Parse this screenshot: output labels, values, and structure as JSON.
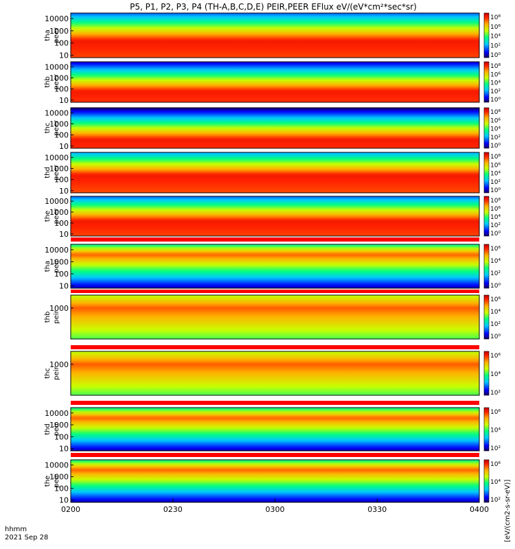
{
  "chart_data": {
    "type": "heatmap",
    "title": "P5, P1, P2, P3, P4 (TH-A,B,C,D,E) PEIR,PEER EFlux eV/(eV*cm²*sec*sr)",
    "x_label_left": "hhmm",
    "date_label": "2021 Sep 28",
    "x_ticks": [
      "0200",
      "0230",
      "0300",
      "0330",
      "0400"
    ],
    "x_range": [
      "02:00",
      "04:00"
    ],
    "colorbar_label": "[eV/(cm2-s-sr-eV)]",
    "panels": [
      {
        "label1": "tha",
        "label2": "peer",
        "yticks": [
          "10000",
          "1000",
          "100",
          "10"
        ],
        "cbar_ticks": [
          "10⁸",
          "10⁶",
          "10⁴",
          "10²",
          "10⁰"
        ],
        "y_log_range": [
          0.8,
          4.45
        ],
        "band": "electron",
        "core_log": 2.2
      },
      {
        "label1": "thb",
        "label2": "peer",
        "yticks": [
          "10000",
          "1000",
          "100",
          "10"
        ],
        "cbar_ticks": [
          "10⁸",
          "10⁶",
          "10⁴",
          "10²",
          "10⁰"
        ],
        "y_log_range": [
          0.8,
          4.45
        ],
        "band": "electron",
        "core_log": 1.8
      },
      {
        "label1": "thc",
        "label2": "peer",
        "yticks": [
          "10000",
          "1000",
          "100",
          "10"
        ],
        "cbar_ticks": [
          "10⁸",
          "10⁶",
          "10⁴",
          "10²",
          "10⁰"
        ],
        "y_log_range": [
          0.8,
          4.45
        ],
        "band": "electron",
        "core_log": 1.6
      },
      {
        "label1": "thd",
        "label2": "peer",
        "yticks": [
          "10000",
          "1000",
          "100",
          "10"
        ],
        "cbar_ticks": [
          "10⁸",
          "10⁶",
          "10⁴",
          "10²",
          "10⁰"
        ],
        "y_log_range": [
          0.8,
          4.45
        ],
        "band": "electron",
        "core_log": 2.4
      },
      {
        "label1": "the",
        "label2": "peer",
        "yticks": [
          "10000",
          "1000",
          "100",
          "10"
        ],
        "cbar_ticks": [
          "10⁸",
          "10⁶",
          "10⁴",
          "10²",
          "10⁰"
        ],
        "y_log_range": [
          0.8,
          4.45
        ],
        "band": "electron",
        "core_log": 2.2
      },
      {
        "label1": "tha",
        "label2": "peir",
        "yticks": [
          "10000",
          "1000",
          "100",
          "10"
        ],
        "cbar_ticks": [
          "10⁶",
          "10⁴",
          "10²",
          "10⁰"
        ],
        "y_log_range": [
          0.8,
          4.45
        ],
        "band": "ion",
        "core_log": 3.6
      },
      {
        "label1": "thb",
        "label2": "peir",
        "yticks": [
          "1000"
        ],
        "cbar_ticks": [
          "10⁶",
          "10⁴",
          "10²",
          "10⁰"
        ],
        "y_log_range": [
          1.8,
          3.5
        ],
        "band": "ion",
        "core_log": 3.0
      },
      {
        "label1": "thc",
        "label2": "peir",
        "yticks": [
          "1000"
        ],
        "cbar_ticks": [
          "10⁶",
          "10⁴",
          "10²"
        ],
        "y_log_range": [
          1.8,
          3.5
        ],
        "band": "ion",
        "core_log": 3.0
      },
      {
        "label1": "thd",
        "label2": "peir",
        "yticks": [
          "10000",
          "1000",
          "100",
          "10"
        ],
        "cbar_ticks": [
          "10⁶",
          "10⁴",
          "10²"
        ],
        "y_log_range": [
          0.8,
          4.45
        ],
        "band": "ion",
        "core_log": 3.6
      },
      {
        "label1": "the",
        "label2": "peir",
        "yticks": [
          "10000",
          "1000",
          "100",
          "10"
        ],
        "cbar_ticks": [
          "10⁶",
          "10⁴",
          "10²"
        ],
        "y_log_range": [
          0.8,
          4.45
        ],
        "band": "ion",
        "core_log": 3.6
      }
    ],
    "grid": false,
    "legend": "colorbars-right"
  }
}
